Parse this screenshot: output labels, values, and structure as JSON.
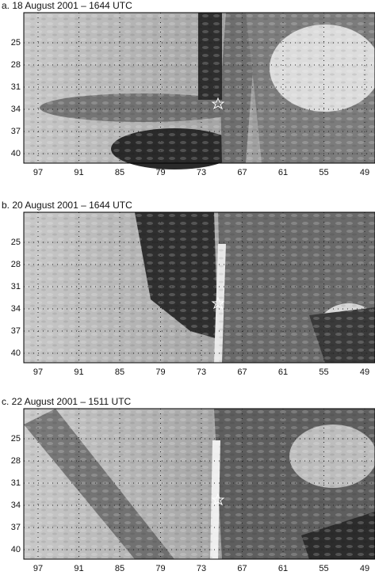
{
  "panels": [
    {
      "title": "a. 18 August 2001 – 1644 UTC",
      "y_labels": [
        25,
        28,
        31,
        34,
        37,
        40
      ],
      "x_labels": [
        97,
        91,
        85,
        79,
        73,
        67,
        61,
        55,
        49
      ]
    },
    {
      "title": "b. 20 August 2001 – 1644 UTC",
      "y_labels": [
        25,
        28,
        31,
        34,
        37,
        40
      ],
      "x_labels": [
        97,
        91,
        85,
        79,
        73,
        67,
        61,
        55,
        49
      ]
    },
    {
      "title": "c. 22 August 2001 – 1511 UTC",
      "y_labels": [
        25,
        28,
        31,
        34,
        37,
        40
      ],
      "x_labels": [
        97,
        91,
        85,
        79,
        73,
        67,
        61,
        55,
        49
      ]
    }
  ]
}
